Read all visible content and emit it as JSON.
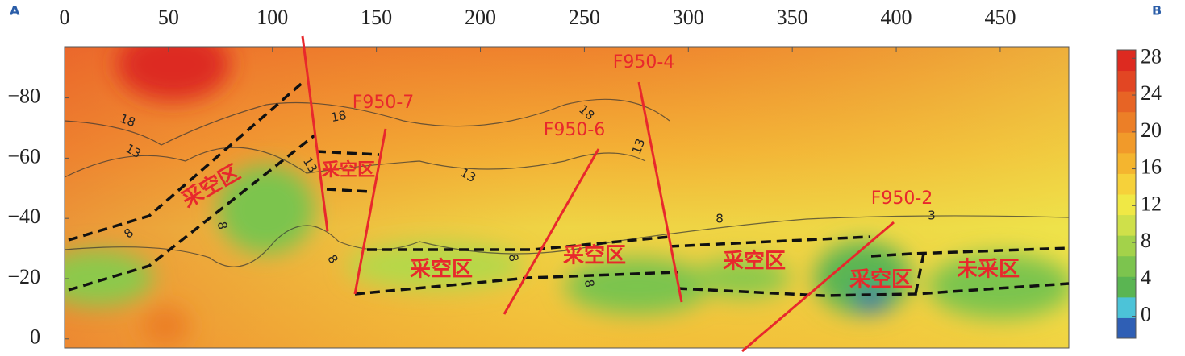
{
  "chart_data": {
    "type": "contour",
    "corner_labels": [
      "A",
      "B"
    ],
    "xlim": [
      0,
      483
    ],
    "xticks": [
      0,
      50,
      100,
      150,
      200,
      250,
      300,
      350,
      400,
      450
    ],
    "ylim": [
      3,
      -97
    ],
    "yticks": [
      0,
      {
        "value": -20,
        "label": "−20"
      },
      {
        "value": -40,
        "label": "−40"
      },
      {
        "value": -60,
        "label": "−60"
      },
      {
        "value": -80,
        "label": "−80"
      }
    ],
    "colorbar": {
      "lim": [
        -2.4,
        28.9
      ],
      "ticks": [
        0,
        4,
        8,
        12,
        16,
        20,
        24,
        28
      ],
      "colors": [
        "#2f5fb5",
        "#4cc3d8",
        "#5ab552",
        "#7cc44e",
        "#a3d24a",
        "#cfe04a",
        "#f0e845",
        "#f6d13a",
        "#f4b52f",
        "#f19a2a",
        "#ec7f27",
        "#e76425",
        "#e24623",
        "#dd2a20"
      ]
    },
    "annotations": [
      "F950-7",
      "F950-6",
      "F950-4",
      "F950-2",
      "采空区",
      "采空区",
      "采空区",
      "采空区",
      "采空区",
      "采空区",
      "未采区"
    ],
    "contour_labels": [
      "18",
      "18",
      "18",
      "13",
      "13",
      "13",
      "13",
      "8",
      "8",
      "8",
      "8",
      "8",
      "8",
      "3"
    ]
  }
}
